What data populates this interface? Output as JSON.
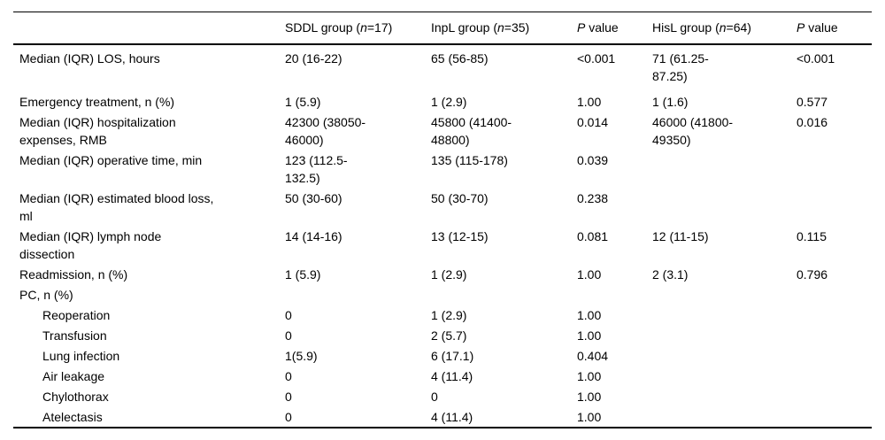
{
  "table": {
    "headers": [
      {
        "label": ""
      },
      {
        "pre": "SDDL group (",
        "it": "n",
        "post": "=17)"
      },
      {
        "pre": "InpL group (",
        "it": "n",
        "post": "=35)"
      },
      {
        "it": "P",
        "post": " value"
      },
      {
        "pre": "HisL group (",
        "it": "n",
        "post": "=64)"
      },
      {
        "it": "P",
        "post": " value"
      }
    ],
    "rows": [
      {
        "label": "Median (IQR) LOS, hours",
        "indent": false,
        "spacer": true,
        "sddl": "20 (16-22)",
        "inpl": "65 (56-85)",
        "p1": "<0.001",
        "hisl": "71 (61.25-\n87.25)",
        "p2": "<0.001"
      },
      {
        "label": "Emergency treatment, n (%)",
        "indent": false,
        "spacer": false,
        "sddl": "1 (5.9)",
        "inpl": "1 (2.9)",
        "p1": "1.00",
        "hisl": "1 (1.6)",
        "p2": "0.577"
      },
      {
        "label": "Median (IQR) hospitalization\nexpenses, RMB",
        "indent": false,
        "spacer": false,
        "sddl": "42300 (38050-\n46000)",
        "inpl": "45800 (41400-\n48800)",
        "p1": "0.014",
        "hisl": "46000 (41800-\n49350)",
        "p2": "0.016"
      },
      {
        "label": "Median (IQR) operative time, min",
        "indent": false,
        "spacer": false,
        "sddl": "123 (112.5-\n132.5)",
        "inpl": "135 (115-178)",
        "p1": "0.039",
        "hisl": "",
        "p2": ""
      },
      {
        "label": "Median (IQR) estimated blood loss,\nml",
        "indent": false,
        "spacer": false,
        "sddl": "50 (30-60)",
        "inpl": "50 (30-70)",
        "p1": "0.238",
        "hisl": "",
        "p2": ""
      },
      {
        "label": "Median (IQR) lymph node\ndissection",
        "indent": false,
        "spacer": false,
        "sddl": "14 (14-16)",
        "inpl": "13 (12-15)",
        "p1": "0.081",
        "hisl": "12 (11-15)",
        "p2": "0.115"
      },
      {
        "label": "Readmission, n (%)",
        "indent": false,
        "spacer": false,
        "sddl": "1 (5.9)",
        "inpl": "1 (2.9)",
        "p1": "1.00",
        "hisl": "2 (3.1)",
        "p2": "0.796"
      },
      {
        "label": "PC, n (%)",
        "indent": false,
        "spacer": false,
        "sddl": "",
        "inpl": "",
        "p1": "",
        "hisl": "",
        "p2": ""
      },
      {
        "label": "Reoperation",
        "indent": true,
        "spacer": false,
        "sddl": "0",
        "inpl": "1 (2.9)",
        "p1": "1.00",
        "hisl": "",
        "p2": ""
      },
      {
        "label": "Transfusion",
        "indent": true,
        "spacer": false,
        "sddl": "0",
        "inpl": "2 (5.7)",
        "p1": "1.00",
        "hisl": "",
        "p2": ""
      },
      {
        "label": "Lung infection",
        "indent": true,
        "spacer": false,
        "sddl": "1(5.9)",
        "inpl": "6 (17.1)",
        "p1": "0.404",
        "hisl": "",
        "p2": ""
      },
      {
        "label": "Air leakage",
        "indent": true,
        "spacer": false,
        "sddl": "0",
        "inpl": "4 (11.4)",
        "p1": "1.00",
        "hisl": "",
        "p2": ""
      },
      {
        "label": "Chylothorax",
        "indent": true,
        "spacer": false,
        "sddl": "0",
        "inpl": "0",
        "p1": "1.00",
        "hisl": "",
        "p2": ""
      },
      {
        "label": "Atelectasis",
        "indent": true,
        "spacer": false,
        "sddl": "0",
        "inpl": "4 (11.4)",
        "p1": "1.00",
        "hisl": "",
        "p2": ""
      }
    ]
  }
}
